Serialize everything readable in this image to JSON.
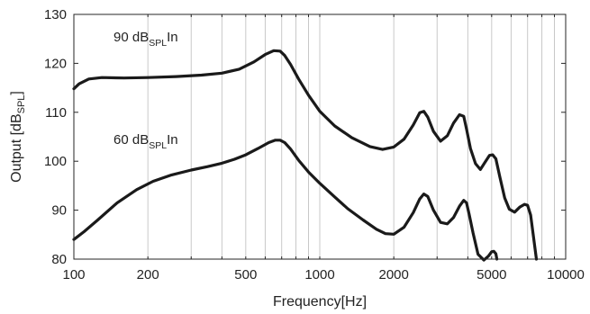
{
  "chart_data": {
    "type": "line",
    "xscale": "log",
    "xlim": [
      100,
      10000
    ],
    "ylim": [
      80,
      130
    ],
    "xlabel": "Frequency[Hz]",
    "ylabel": {
      "main": "Output [dB",
      "sub": "SPL",
      "end": "]"
    },
    "xticks": [
      {
        "value": 100,
        "label": "100"
      },
      {
        "value": 200,
        "label": "200"
      },
      {
        "value": 500,
        "label": "500"
      },
      {
        "value": 1000,
        "label": "1000"
      },
      {
        "value": 2000,
        "label": "2000"
      },
      {
        "value": 5000,
        "label": "5000"
      },
      {
        "value": 10000,
        "label": "10000"
      }
    ],
    "yticks": [
      80,
      90,
      100,
      110,
      120,
      130
    ],
    "grid": "x-minor-and-major",
    "line_color": "#1a1a1a",
    "annotations": [
      {
        "main": "90 dB",
        "sub": "SPL",
        "end": "In",
        "x": 145,
        "y": 124.5
      },
      {
        "main": "60 dB",
        "sub": "SPL",
        "end": "In",
        "x": 145,
        "y": 103.5
      }
    ],
    "series": [
      {
        "x": [
          100,
          105,
          115,
          130,
          160,
          200,
          260,
          330,
          400,
          470,
          540,
          600,
          650,
          690,
          720,
          760,
          820,
          900,
          1000,
          1150,
          1350,
          1600,
          1800,
          2000,
          2200,
          2400,
          2550,
          2650,
          2750,
          2900,
          3100,
          3300,
          3500,
          3700,
          3850,
          3950,
          4100,
          4300,
          4500,
          4700,
          4900,
          5050,
          5200,
          5400,
          5650,
          5900,
          6200,
          6500,
          6800,
          7000,
          7200,
          7400,
          7600
        ],
        "y": [
          114.8,
          115.8,
          116.8,
          117.1,
          117.0,
          117.1,
          117.3,
          117.6,
          118.0,
          118.8,
          120.3,
          121.8,
          122.6,
          122.5,
          121.6,
          119.8,
          116.8,
          113.5,
          110.2,
          107.2,
          104.8,
          103.0,
          102.4,
          102.9,
          104.5,
          107.4,
          109.9,
          110.2,
          109.0,
          106.1,
          104.1,
          105.2,
          107.8,
          109.5,
          109.2,
          106.6,
          102.6,
          99.5,
          98.3,
          99.8,
          101.2,
          101.3,
          100.5,
          96.8,
          92.5,
          90.2,
          89.6,
          90.6,
          91.2,
          91.0,
          89.0,
          84.5,
          80
        ]
      },
      {
        "x": [
          100,
          110,
          125,
          150,
          180,
          210,
          250,
          300,
          350,
          400,
          450,
          500,
          560,
          620,
          660,
          690,
          720,
          760,
          820,
          900,
          1000,
          1150,
          1300,
          1500,
          1700,
          1850,
          2000,
          2200,
          2400,
          2550,
          2650,
          2750,
          2900,
          3100,
          3300,
          3500,
          3700,
          3850,
          3950,
          4050,
          4200,
          4400,
          4650,
          4850,
          5000,
          5100,
          5200,
          5250
        ],
        "y": [
          84.0,
          85.6,
          88.0,
          91.5,
          94.2,
          95.9,
          97.2,
          98.2,
          98.9,
          99.6,
          100.4,
          101.3,
          102.6,
          103.8,
          104.3,
          104.3,
          103.8,
          102.5,
          100.2,
          97.8,
          95.5,
          92.7,
          90.3,
          88.0,
          86.1,
          85.2,
          85.1,
          86.5,
          89.5,
          92.3,
          93.3,
          92.8,
          90.0,
          87.5,
          87.2,
          88.5,
          90.8,
          92.0,
          91.5,
          89.2,
          85.4,
          81.0,
          79.8,
          80.6,
          81.5,
          81.6,
          81.1,
          80.0
        ]
      }
    ]
  }
}
